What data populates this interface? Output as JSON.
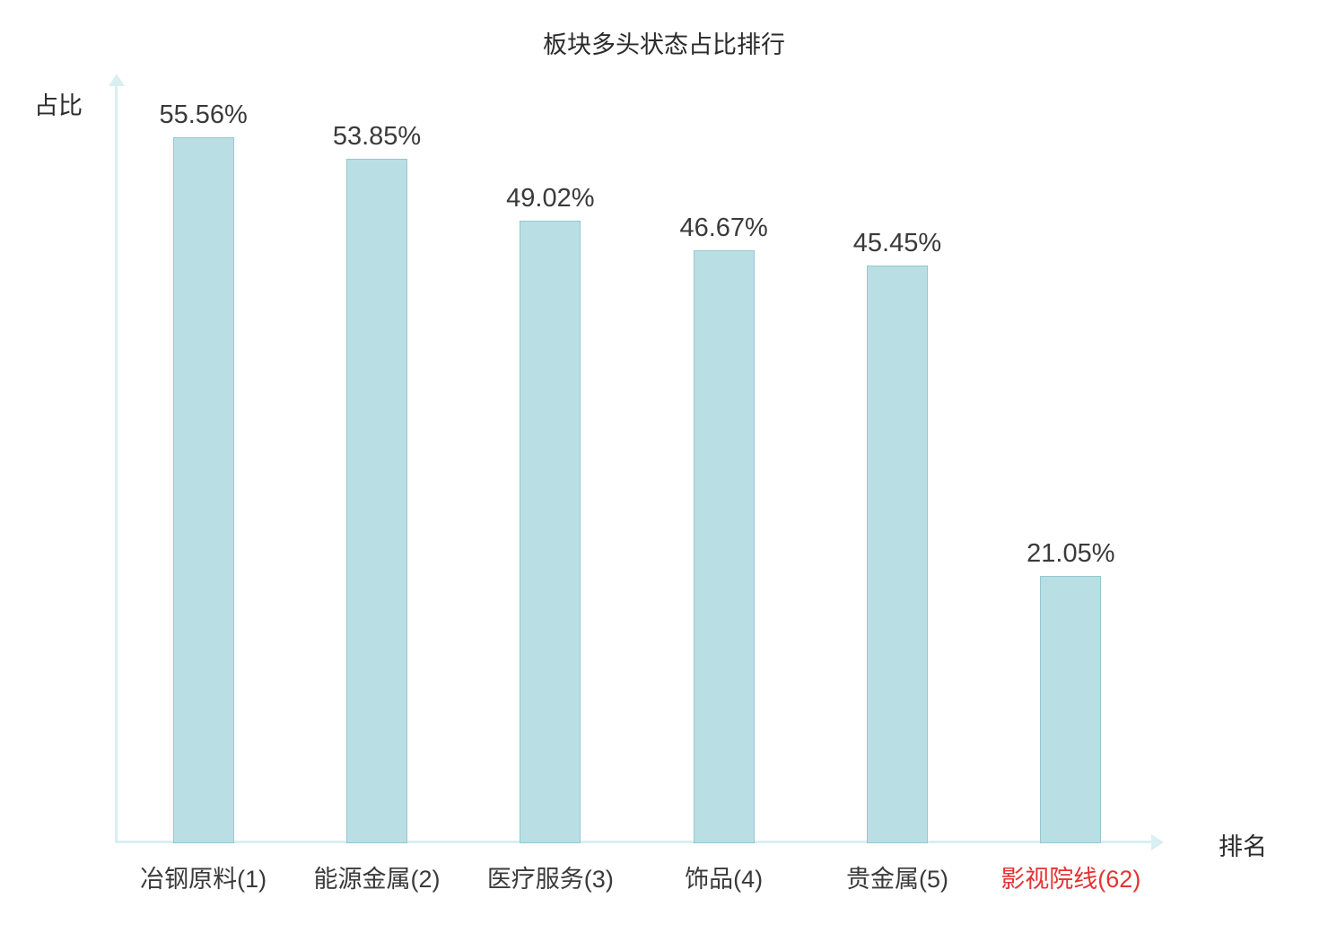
{
  "chart_data": {
    "type": "bar",
    "title": "板块多头状态占比排行",
    "xlabel": "排名",
    "ylabel": "占比",
    "categories": [
      "冶钢原料(1)",
      "能源金属(2)",
      "医疗服务(3)",
      "饰品(4)",
      "贵金属(5)",
      "影视院线(62)"
    ],
    "values": [
      55.56,
      53.85,
      49.02,
      46.67,
      45.45,
      21.05
    ],
    "value_labels": [
      "55.56%",
      "53.85%",
      "49.02%",
      "46.67%",
      "45.45%",
      "21.05%"
    ],
    "ylim": [
      0,
      60
    ],
    "grid": false,
    "legend": "none",
    "bar_color": "#b9dee3",
    "bar_border_color": "#95c8d0",
    "axis_color": "#d9eff1",
    "value_label_color": "#3a3a3a",
    "category_label_colors": [
      "#3a3a3a",
      "#3a3a3a",
      "#3a3a3a",
      "#3a3a3a",
      "#3a3a3a",
      "#e53333"
    ]
  }
}
